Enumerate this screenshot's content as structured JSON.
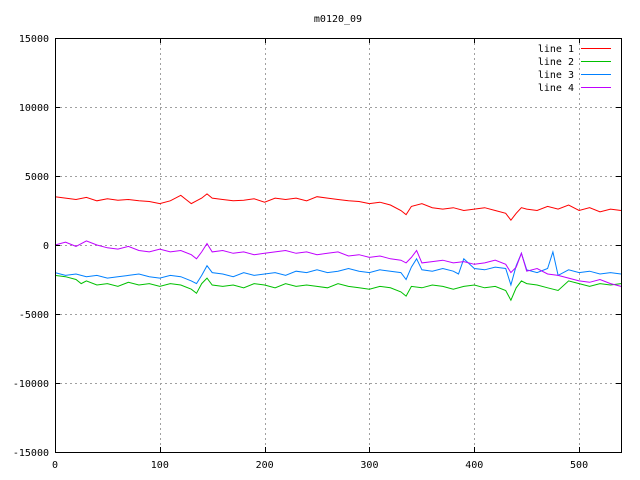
{
  "chart_data": {
    "type": "line",
    "title": "m0120_09",
    "xlabel": "",
    "ylabel": "",
    "xlim": [
      0,
      540
    ],
    "ylim": [
      -15000,
      15000
    ],
    "xticks": [
      0,
      100,
      200,
      300,
      400,
      500
    ],
    "yticks": [
      -15000,
      -10000,
      -5000,
      0,
      5000,
      10000,
      15000
    ],
    "grid": true,
    "legend_position": "top-right",
    "series": [
      {
        "name": "line 1",
        "color": "#ff0000",
        "x": [
          0,
          10,
          20,
          30,
          40,
          50,
          60,
          70,
          80,
          90,
          100,
          110,
          120,
          125,
          130,
          135,
          140,
          145,
          150,
          160,
          170,
          180,
          190,
          200,
          210,
          220,
          230,
          240,
          250,
          260,
          270,
          280,
          290,
          300,
          310,
          320,
          330,
          335,
          340,
          350,
          360,
          370,
          380,
          390,
          400,
          410,
          420,
          430,
          435,
          440,
          445,
          450,
          460,
          470,
          480,
          490,
          500,
          510,
          520,
          530,
          540
        ],
        "y": [
          3500,
          3400,
          3300,
          3450,
          3200,
          3350,
          3250,
          3300,
          3200,
          3150,
          3000,
          3200,
          3600,
          3300,
          3000,
          3200,
          3400,
          3700,
          3400,
          3300,
          3200,
          3250,
          3350,
          3100,
          3400,
          3300,
          3400,
          3200,
          3500,
          3400,
          3300,
          3200,
          3150,
          3000,
          3100,
          2900,
          2500,
          2200,
          2800,
          3000,
          2700,
          2600,
          2700,
          2500,
          2600,
          2700,
          2500,
          2300,
          1800,
          2300,
          2700,
          2600,
          2500,
          2800,
          2600,
          2900,
          2500,
          2700,
          2400,
          2600,
          2500
        ]
      },
      {
        "name": "line 2",
        "color": "#00c000",
        "x": [
          0,
          10,
          20,
          25,
          30,
          40,
          50,
          60,
          70,
          80,
          90,
          100,
          110,
          120,
          130,
          135,
          140,
          145,
          150,
          160,
          170,
          180,
          190,
          200,
          210,
          220,
          230,
          240,
          250,
          260,
          270,
          280,
          290,
          300,
          310,
          320,
          330,
          335,
          340,
          350,
          360,
          370,
          380,
          390,
          400,
          410,
          420,
          430,
          435,
          440,
          445,
          450,
          460,
          470,
          480,
          490,
          500,
          510,
          520,
          530,
          540
        ],
        "y": [
          -2200,
          -2300,
          -2500,
          -2800,
          -2600,
          -2900,
          -2800,
          -3000,
          -2700,
          -2900,
          -2800,
          -3000,
          -2800,
          -2900,
          -3200,
          -3500,
          -2800,
          -2400,
          -2900,
          -3000,
          -2900,
          -3100,
          -2800,
          -2900,
          -3100,
          -2800,
          -3000,
          -2900,
          -3000,
          -3100,
          -2800,
          -3000,
          -3100,
          -3200,
          -3000,
          -3100,
          -3400,
          -3700,
          -3000,
          -3100,
          -2900,
          -3000,
          -3200,
          -3000,
          -2900,
          -3100,
          -3000,
          -3300,
          -4000,
          -3100,
          -2600,
          -2800,
          -2900,
          -3100,
          -3300,
          -2600,
          -2800,
          -3000,
          -2800,
          -2900,
          -2800
        ]
      },
      {
        "name": "line 3",
        "color": "#0080ff",
        "x": [
          0,
          10,
          20,
          30,
          40,
          50,
          60,
          70,
          80,
          90,
          100,
          110,
          120,
          130,
          135,
          140,
          145,
          150,
          160,
          170,
          180,
          190,
          200,
          210,
          220,
          230,
          240,
          250,
          260,
          270,
          280,
          290,
          300,
          310,
          320,
          330,
          335,
          340,
          345,
          350,
          360,
          370,
          380,
          385,
          390,
          400,
          410,
          420,
          430,
          435,
          440,
          445,
          450,
          460,
          470,
          475,
          480,
          490,
          500,
          510,
          520,
          530,
          540
        ],
        "y": [
          -2000,
          -2200,
          -2100,
          -2300,
          -2200,
          -2400,
          -2300,
          -2200,
          -2100,
          -2300,
          -2400,
          -2200,
          -2300,
          -2600,
          -2800,
          -2200,
          -1500,
          -2000,
          -2100,
          -2300,
          -2000,
          -2200,
          -2100,
          -2000,
          -2200,
          -1900,
          -2000,
          -1800,
          -2000,
          -1900,
          -1700,
          -1900,
          -2000,
          -1800,
          -1900,
          -2000,
          -2500,
          -1600,
          -1000,
          -1800,
          -1900,
          -1700,
          -1900,
          -2100,
          -1000,
          -1700,
          -1800,
          -1600,
          -1700,
          -2900,
          -1500,
          -600,
          -1800,
          -2000,
          -1700,
          -500,
          -2200,
          -1800,
          -2000,
          -1900,
          -2100,
          -2000,
          -2100
        ]
      },
      {
        "name": "line 4",
        "color": "#c000ff",
        "x": [
          0,
          10,
          20,
          30,
          40,
          50,
          60,
          70,
          80,
          90,
          100,
          110,
          120,
          130,
          135,
          140,
          145,
          150,
          160,
          170,
          180,
          190,
          200,
          210,
          220,
          230,
          240,
          250,
          260,
          270,
          280,
          290,
          300,
          310,
          320,
          330,
          335,
          340,
          345,
          350,
          360,
          370,
          380,
          390,
          400,
          410,
          420,
          430,
          435,
          440,
          445,
          450,
          460,
          470,
          480,
          490,
          500,
          510,
          520,
          530,
          540
        ],
        "y": [
          0,
          200,
          -100,
          300,
          0,
          -200,
          -300,
          -100,
          -400,
          -500,
          -300,
          -500,
          -400,
          -700,
          -1000,
          -500,
          100,
          -500,
          -400,
          -600,
          -500,
          -700,
          -600,
          -500,
          -400,
          -600,
          -500,
          -700,
          -600,
          -500,
          -800,
          -700,
          -900,
          -800,
          -1000,
          -1100,
          -1300,
          -900,
          -400,
          -1300,
          -1200,
          -1100,
          -1300,
          -1200,
          -1400,
          -1300,
          -1100,
          -1400,
          -2000,
          -1600,
          -600,
          -1900,
          -1700,
          -2100,
          -2200,
          -2400,
          -2600,
          -2700,
          -2500,
          -2800,
          -3000
        ]
      }
    ]
  }
}
